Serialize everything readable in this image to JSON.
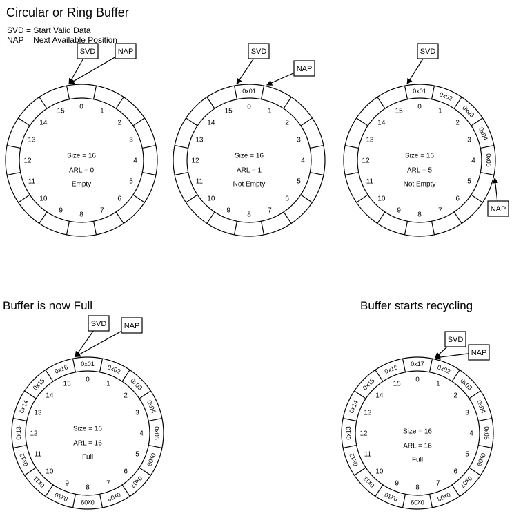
{
  "header": {
    "title": "Circular or Ring Buffer",
    "legend": [
      "SVD = Start Valid Data",
      "NAP = Next Available Position"
    ]
  },
  "section_titles": {
    "full": "Buffer is now Full",
    "recycling": "Buffer starts recycling"
  },
  "pointer_labels": {
    "svd": "SVD",
    "nap": "NAP"
  },
  "size_slots": 16,
  "buffers": [
    {
      "id": "empty",
      "size_text": "Size = 16",
      "arl_text": "ARL = 0",
      "status_text": "Empty",
      "segment_values": {},
      "svd_slot": 0,
      "nap_slot": 0
    },
    {
      "id": "not-empty-1",
      "size_text": "Size = 16",
      "arl_text": "ARL = 1",
      "status_text": "Not Empty",
      "segment_values": {
        "0": "0x01"
      },
      "svd_slot": 0,
      "nap_slot": 1
    },
    {
      "id": "not-empty-5",
      "size_text": "Size = 16",
      "arl_text": "ARL = 5",
      "status_text": "Not Empty",
      "segment_values": {
        "0": "0x01",
        "1": "0x02",
        "2": "0x03",
        "3": "0x04",
        "4": "0x05"
      },
      "svd_slot": 0,
      "nap_slot": 5
    },
    {
      "id": "full",
      "size_text": "Size = 16",
      "arl_text": "ARL = 16",
      "status_text": "Full",
      "segment_values": {
        "0": "0x01",
        "1": "0x02",
        "2": "0x03",
        "3": "0x04",
        "4": "0x05",
        "5": "0x06",
        "6": "0x07",
        "7": "0x08",
        "8": "0x09",
        "9": "0x10",
        "10": "0x11",
        "11": "0x12",
        "12": "0x13",
        "13": "0x14",
        "14": "0x15",
        "15": "0x16"
      },
      "svd_slot": 0,
      "nap_slot": 0
    },
    {
      "id": "recycling",
      "size_text": "Size = 16",
      "arl_text": "ARL = 16",
      "status_text": "Full",
      "segment_values": {
        "0": "0x17",
        "1": "0x02",
        "2": "0x03",
        "3": "0x04",
        "4": "0x05",
        "5": "0x06",
        "6": "0x07",
        "7": "0x08",
        "8": "0x09",
        "9": "0x10",
        "10": "0x11",
        "11": "0x12",
        "12": "0x13",
        "13": "0x14",
        "14": "0x15",
        "15": "0x16"
      },
      "svd_slot": 1,
      "nap_slot": 1
    }
  ]
}
